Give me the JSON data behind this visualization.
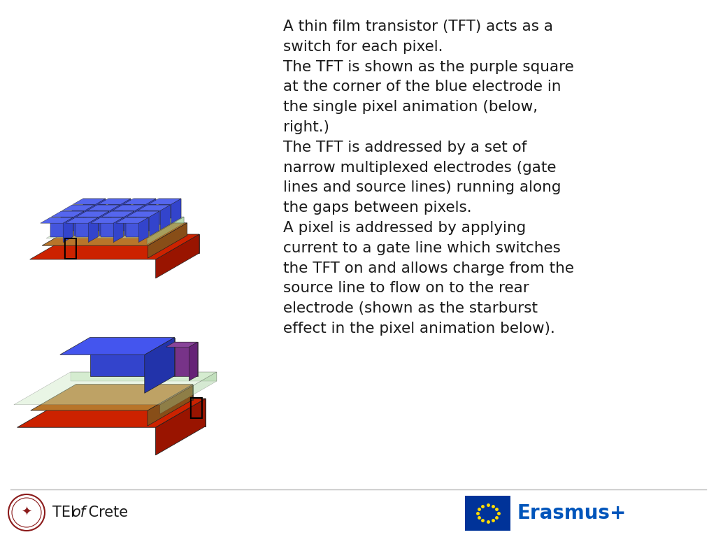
{
  "background_color": "#ffffff",
  "text_color": "#1a1a1a",
  "text_fontsize": 15.5,
  "paragraph1": "A thin film transistor (TFT) acts as a\nswitch for each pixel.",
  "paragraph2": "The TFT is shown as the purple square\nat the corner of the blue electrode in\nthe single pixel animation (below,\nright.)",
  "paragraph3": "The TFT is addressed by a set of\nnarrow multiplexed electrodes (gate\nlines and source lines) running along\nthe gaps between pixels.",
  "paragraph4": "A pixel is addressed by applying\ncurrent to a gate line which switches\nthe TFT on and allows charge from the\nsource line to flow on to the rear\nelectrode (shown as the starburst\neffect in the pixel animation below).",
  "footer_color": "#1a1a1a",
  "footer_fontsize": 15,
  "erasmus_color": "#0055bb",
  "erasmus_fontsize": 20,
  "red_top": "#cc2200",
  "red_front": "#aa1800",
  "red_side": "#991400",
  "brown_top": "#b8752a",
  "brown_front": "#9a5f20",
  "brown_side": "#884e18",
  "green_top": "#c8e8c0",
  "green_front": "#b0d8a8",
  "green_side": "#98c890",
  "blue_top": "#4455ee",
  "blue_front": "#3344cc",
  "blue_side": "#2233aa",
  "purple_top": "#884499",
  "purple_front": "#773388",
  "purple_side": "#662277",
  "cube_top": "#5566ee",
  "cube_front": "#4455dd",
  "cube_side": "#3344cc"
}
